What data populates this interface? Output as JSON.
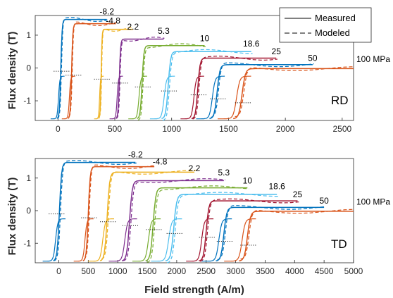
{
  "chart_data": [
    {
      "type": "line",
      "panel_label": "RD",
      "ylabel": "Flux density (T)",
      "xlim": [
        -200,
        2600
      ],
      "ylim": [
        -1.6,
        1.6
      ],
      "xticks": [
        "0",
        "500",
        "1000",
        "1500",
        "2000",
        "2500"
      ],
      "yticks": [
        "-1",
        "0",
        "1"
      ],
      "xtick_values": [
        0,
        500,
        1000,
        1500,
        2000,
        2500
      ],
      "ytick_values": [
        -1,
        0,
        1
      ],
      "legend": {
        "placement": "top-right",
        "entries": [
          "Measured",
          "Modeled"
        ]
      },
      "stress_labels": [
        "-8.2",
        "-4.8",
        "2.2",
        "5.3",
        "10",
        "18.6",
        "25",
        "50",
        "100 MPa"
      ],
      "series": [
        {
          "stress": "-8.2",
          "color": "#0072BD",
          "Hc": 25,
          "Hmax": 430,
          "Bmax": 1.48,
          "zero_mark": 25
        },
        {
          "stress": "-4.8",
          "color": "#D95319",
          "Hc": 120,
          "Hmax": 510,
          "Bmax": 1.35,
          "zero_mark": 130
        },
        {
          "stress": "2.2",
          "color": "#EDB120",
          "Hc": 380,
          "Hmax": 660,
          "Bmax": 1.18,
          "zero_mark": 380
        },
        {
          "stress": "5.3",
          "color": "#7E2F8E",
          "Hc": 540,
          "Hmax": 930,
          "Bmax": 0.88,
          "zero_mark": 540
        },
        {
          "stress": "10",
          "color": "#77AC30",
          "Hc": 740,
          "Hmax": 1290,
          "Bmax": 0.68,
          "zero_mark": 740
        },
        {
          "stress": "18.6",
          "color": "#4DBEEE",
          "Hc": 970,
          "Hmax": 1700,
          "Bmax": 0.5,
          "zero_mark": 970
        },
        {
          "stress": "25",
          "color": "#A2142F",
          "Hc": 1230,
          "Hmax": 1920,
          "Bmax": 0.3,
          "zero_mark": 1230
        },
        {
          "stress": "50",
          "color": "#0072BD",
          "Hc": 1400,
          "Hmax": 2240,
          "Bmax": 0.1,
          "zero_mark": 1400
        },
        {
          "stress": "100 MPa",
          "color": "#D95319",
          "Hc": 1620,
          "Hmax": 2600,
          "Bmax": -0.02,
          "zero_mark": 1620
        }
      ]
    },
    {
      "type": "line",
      "panel_label": "TD",
      "ylabel": "Flux density (T)",
      "xlabel": "Field strength (A/m)",
      "xlim": [
        -400,
        5000
      ],
      "ylim": [
        -1.6,
        1.6
      ],
      "xticks": [
        "0",
        "500",
        "1000",
        "1500",
        "2000",
        "2500",
        "3000",
        "3500",
        "4000",
        "4500",
        "5000"
      ],
      "yticks": [
        "-1",
        "0",
        "1"
      ],
      "xtick_values": [
        0,
        500,
        1000,
        1500,
        2000,
        2500,
        3000,
        3500,
        4000,
        4500,
        5000
      ],
      "ytick_values": [
        -1,
        0,
        1
      ],
      "stress_labels": [
        "-8.2",
        "-4.8",
        "2.2",
        "5.3",
        "10",
        "18.6",
        "25",
        "50",
        "100 MPa"
      ],
      "series": [
        {
          "stress": "-8.2",
          "color": "#0072BD",
          "Hc": 10,
          "Hmax": 1300,
          "Bmax": 1.48,
          "zero_mark": -50
        },
        {
          "stress": "-4.8",
          "color": "#D95319",
          "Hc": 500,
          "Hmax": 1620,
          "Bmax": 1.35,
          "zero_mark": 500
        },
        {
          "stress": "2.2",
          "color": "#EDB120",
          "Hc": 820,
          "Hmax": 2300,
          "Bmax": 1.18,
          "zero_mark": 820
        },
        {
          "stress": "5.3",
          "color": "#7E2F8E",
          "Hc": 1200,
          "Hmax": 2800,
          "Bmax": 0.92,
          "zero_mark": 1200
        },
        {
          "stress": "10",
          "color": "#77AC30",
          "Hc": 1600,
          "Hmax": 3200,
          "Bmax": 0.7,
          "zero_mark": 1600
        },
        {
          "stress": "18.6",
          "color": "#4DBEEE",
          "Hc": 1950,
          "Hmax": 3700,
          "Bmax": 0.5,
          "zero_mark": 1950
        },
        {
          "stress": "25",
          "color": "#A2142F",
          "Hc": 2500,
          "Hmax": 4050,
          "Bmax": 0.3,
          "zero_mark": 2500
        },
        {
          "stress": "50",
          "color": "#0072BD",
          "Hc": 2800,
          "Hmax": 4500,
          "Bmax": 0.1,
          "zero_mark": 2800
        },
        {
          "stress": "100 MPa",
          "color": "#D95319",
          "Hc": 3200,
          "Hmax": 5000,
          "Bmax": -0.02,
          "zero_mark": 3200
        }
      ]
    }
  ]
}
